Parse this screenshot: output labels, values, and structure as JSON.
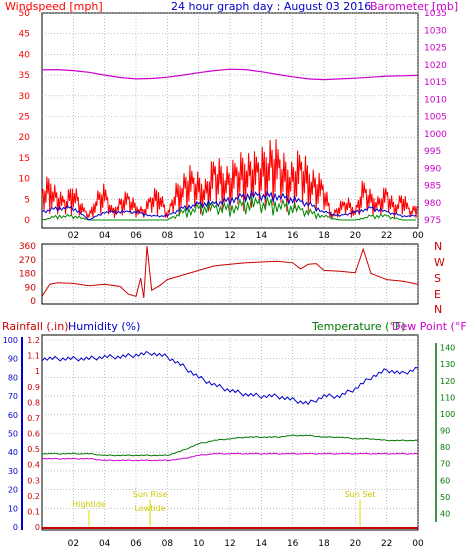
{
  "header": {
    "left_label": "Windspeed [mph]",
    "title": "24 hour graph day : August 03 2016",
    "right_label": "Barometer [mb]"
  },
  "lower_header": {
    "rainfall_label": "Rainfall (.in)",
    "humidity_label": "Humidity (%)",
    "temperature_label": "Temperature (°F)",
    "dewpoint_label": "Dew Point (°F)"
  },
  "colors": {
    "wind": "#ff0000",
    "gust_avg": "#0000cc",
    "wind_low": "#008800",
    "barometer": "#cc00cc",
    "direction": "#cc0000",
    "rain": "#cc0000",
    "humidity": "#0000cc",
    "temperature": "#007700",
    "dewpoint": "#cc00cc",
    "events": "#dddd00",
    "grid": "#9a9a9a",
    "frame": "#000000"
  },
  "time_axis": {
    "ticks": [
      "02",
      "04",
      "06",
      "08",
      "10",
      "12",
      "14",
      "16",
      "18",
      "20",
      "22",
      "00"
    ],
    "range_hours": [
      0,
      24
    ]
  },
  "chart_data": [
    {
      "type": "line",
      "panel": "wind-barometer",
      "title": "24 hour graph day : August 03 2016",
      "xlabel": "",
      "y_left": {
        "label": "Windspeed [mph]",
        "range": [
          0,
          50
        ],
        "ticks": [
          "0",
          "5",
          "10",
          "15",
          "20",
          "25",
          "30",
          "35",
          "40",
          "45",
          "50"
        ]
      },
      "y_right": {
        "label": "Barometer [mb]",
        "range": [
          975,
          1035
        ],
        "ticks": [
          "975",
          "980",
          "985",
          "990",
          "995",
          "1000",
          "1005",
          "1010",
          "1015",
          "1020",
          "1025",
          "1030",
          "1035"
        ]
      },
      "series": [
        {
          "name": "Windspeed [mph]",
          "axis": "left",
          "x": [
            0,
            0.5,
            1,
            1.5,
            2,
            2.5,
            3,
            3.5,
            4,
            4.5,
            5,
            5.5,
            6,
            6.5,
            7,
            7.5,
            8,
            8.5,
            9,
            9.5,
            10,
            10.5,
            11,
            11.5,
            12,
            12.5,
            13,
            13.5,
            14,
            14.5,
            15,
            15.5,
            16,
            16.5,
            17,
            17.5,
            18,
            18.5,
            19,
            19.5,
            20,
            20.5,
            21,
            21.5,
            22,
            22.5,
            23,
            23.5,
            24
          ],
          "y": [
            6,
            8,
            5,
            4,
            7,
            3,
            1,
            5,
            6,
            2,
            4,
            5,
            3,
            2,
            5,
            6,
            1,
            6,
            8,
            9,
            8,
            7,
            11,
            10,
            9,
            11,
            12,
            11,
            12,
            14,
            13,
            11,
            10,
            12,
            10,
            8,
            7,
            1,
            3,
            4,
            2,
            7,
            5,
            4,
            6,
            3,
            5,
            2,
            3
          ]
        },
        {
          "name": "Average speed",
          "axis": "left",
          "x": [
            0,
            1,
            2,
            3,
            4,
            5,
            6,
            7,
            8,
            9,
            10,
            11,
            12,
            13,
            14,
            15,
            16,
            17,
            18,
            19,
            20,
            21,
            22,
            23,
            24
          ],
          "y": [
            2,
            3,
            3,
            0,
            2,
            2,
            2,
            1,
            1,
            3,
            4,
            4,
            5,
            6,
            6,
            6,
            5,
            4,
            2,
            1,
            2,
            3,
            2,
            1,
            1
          ]
        },
        {
          "name": "Low speed",
          "axis": "left",
          "x": [
            0,
            1,
            2,
            3,
            4,
            5,
            6,
            7,
            8,
            9,
            10,
            11,
            12,
            13,
            14,
            15,
            16,
            17,
            18,
            19,
            20,
            21,
            22,
            23,
            24
          ],
          "y": [
            0,
            1,
            1,
            0,
            0,
            0,
            0,
            0,
            0,
            2,
            3,
            3,
            3,
            4,
            4,
            4,
            3,
            2,
            1,
            0,
            0,
            1,
            1,
            0,
            0
          ]
        },
        {
          "name": "Barometer [mb]",
          "axis": "right",
          "x": [
            0,
            1,
            2,
            3,
            4,
            5,
            6,
            7,
            8,
            9,
            10,
            11,
            12,
            13,
            14,
            15,
            16,
            17,
            18,
            19,
            20,
            21,
            22,
            23,
            24
          ],
          "y": [
            1018.5,
            1018.6,
            1018.3,
            1017.8,
            1017.0,
            1016.3,
            1015.9,
            1016.0,
            1016.4,
            1017.0,
            1017.7,
            1018.3,
            1018.7,
            1018.6,
            1018.0,
            1017.2,
            1016.5,
            1015.9,
            1015.7,
            1015.9,
            1016.1,
            1016.4,
            1016.7,
            1016.8,
            1016.9
          ]
        }
      ]
    },
    {
      "type": "line",
      "panel": "wind-direction",
      "y_left": {
        "range": [
          0,
          360
        ],
        "ticks": [
          "0",
          "90",
          "180",
          "270",
          "360"
        ]
      },
      "y_right_labels": [
        "N",
        "W",
        "S",
        "E",
        "N"
      ],
      "series": [
        {
          "name": "Wind direction",
          "x": [
            0,
            0.5,
            1,
            2,
            3,
            4,
            5,
            5.5,
            6,
            6.3,
            6.5,
            6.7,
            7,
            7.5,
            8,
            9,
            10,
            11,
            12,
            13,
            14,
            15,
            16,
            16.5,
            17,
            17.5,
            18,
            19,
            20,
            20.5,
            21,
            22,
            23,
            24
          ],
          "y": [
            30,
            110,
            120,
            115,
            100,
            110,
            95,
            45,
            30,
            150,
            20,
            360,
            70,
            100,
            140,
            170,
            200,
            230,
            240,
            250,
            255,
            260,
            250,
            210,
            240,
            245,
            200,
            195,
            185,
            340,
            180,
            140,
            130,
            110
          ]
        }
      ]
    },
    {
      "type": "line",
      "panel": "humidity-temperature",
      "y_left": {
        "label": "Humidity (%)",
        "range": [
          0,
          100
        ],
        "ticks": [
          "0",
          "10",
          "20",
          "30",
          "40",
          "50",
          "60",
          "70",
          "80",
          "90",
          "100"
        ]
      },
      "y_rain": {
        "label": "Rainfall (.in)",
        "range": [
          0,
          1.2
        ],
        "ticks": [
          "0",
          "0.1",
          "0.2",
          "0.3",
          "0.4",
          "0.5",
          "0.6",
          "0.7",
          "0.8",
          "0.9",
          "1",
          "1.1",
          "1.2"
        ]
      },
      "y_right": {
        "label": "Temperature (°F)",
        "range": [
          30,
          150
        ],
        "ticks": [
          "40",
          "50",
          "60",
          "70",
          "80",
          "90",
          "100",
          "110",
          "120",
          "130",
          "140"
        ]
      },
      "series": [
        {
          "name": "Humidity (%)",
          "axis": "left",
          "x": [
            0,
            1,
            2,
            3,
            4,
            5,
            6,
            7,
            8,
            9,
            10,
            11,
            12,
            13,
            14,
            15,
            16,
            17,
            18,
            19,
            20,
            21,
            22,
            23,
            24
          ],
          "y": [
            90,
            90,
            90,
            90,
            91,
            91,
            92,
            93,
            91,
            86,
            80,
            76,
            73,
            71,
            70,
            70,
            68,
            66,
            70,
            70,
            74,
            80,
            84,
            82,
            85
          ]
        },
        {
          "name": "Temperature (°F)",
          "axis": "right",
          "x": [
            0,
            1,
            2,
            3,
            4,
            5,
            6,
            7,
            8,
            9,
            10,
            11,
            12,
            13,
            14,
            15,
            16,
            17,
            18,
            19,
            20,
            21,
            22,
            23,
            24
          ],
          "y": [
            76,
            76,
            76,
            76,
            75,
            75,
            75,
            75,
            75,
            78,
            82,
            84,
            85,
            86,
            86,
            86,
            87,
            87,
            86,
            86,
            85,
            85,
            84,
            84,
            84
          ]
        },
        {
          "name": "Dew Point (°F)",
          "axis": "right",
          "x": [
            0,
            1,
            2,
            3,
            4,
            5,
            6,
            7,
            8,
            9,
            10,
            11,
            12,
            13,
            14,
            15,
            16,
            17,
            18,
            19,
            20,
            21,
            22,
            23,
            24
          ],
          "y": [
            73,
            73,
            73,
            73,
            72,
            72,
            72,
            72,
            72,
            73,
            75,
            76,
            76,
            76,
            76,
            76,
            76,
            76,
            76,
            76,
            76,
            76,
            76,
            76,
            76
          ]
        },
        {
          "name": "Rainfall (.in)",
          "axis": "rain",
          "x": [
            0,
            24
          ],
          "y": [
            0,
            0
          ]
        }
      ],
      "annotations": [
        {
          "text": "Hightide",
          "x": 3
        },
        {
          "text": "Sun Rise",
          "x": 6.9
        },
        {
          "text": "Lowtide",
          "x": 6.9
        },
        {
          "text": "Sun Set",
          "x": 20.3
        }
      ]
    }
  ]
}
